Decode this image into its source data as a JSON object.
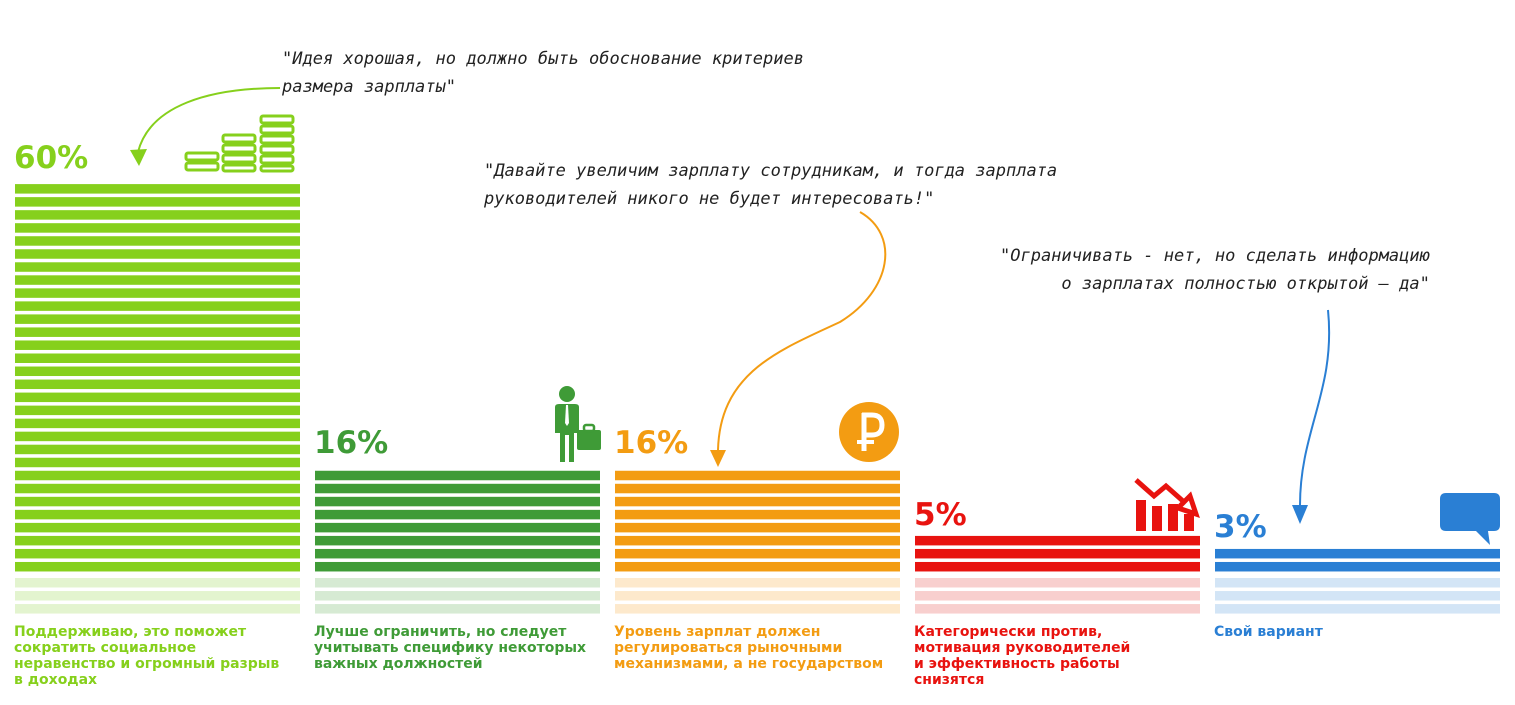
{
  "chart_data": {
    "type": "bar",
    "title": "",
    "xlabel": "",
    "ylabel": "",
    "ylim": [
      0,
      60
    ],
    "grid": false,
    "legend": "none",
    "categories": [
      "Поддерживаю, это поможет сократить социальное неравенство и огромный разрыв в доходах",
      "Лучше ограничить, но следует учитывать специфику некоторых важных должностей",
      "Уровень зарплат должен регулироваться рыночными механизмами, а не государством",
      "Категорически против, мотивация руководителей и эффективность работы снизятся",
      "Свой вариант"
    ],
    "values": [
      60,
      16,
      16,
      5,
      3
    ],
    "value_labels": [
      "60%",
      "16%",
      "16%",
      "5%",
      "3%"
    ]
  },
  "bars": [
    {
      "value_label": "60%",
      "color": "#86d01c",
      "light": "#e3f4cf",
      "icon": "coins-icon",
      "label_lines": [
        "Поддерживаю, это поможет",
        "сократить социальное",
        "неравенство и огромный разрыв",
        "в доходах"
      ]
    },
    {
      "value_label": "16%",
      "color": "#3f9b37",
      "light": "#d6ead3",
      "icon": "businessman-icon",
      "label_lines": [
        "Лучше ограничить, но следует",
        "учитывать специфику некоторых",
        "важных должностей"
      ]
    },
    {
      "value_label": "16%",
      "color": "#f39c12",
      "light": "#fde9cc",
      "icon": "ruble-icon",
      "label_lines": [
        "Уровень зарплат должен",
        "регулироваться рыночными",
        "механизмами, а не государством"
      ]
    },
    {
      "value_label": "5%",
      "color": "#e8130f",
      "light": "#f8cfce",
      "icon": "decline-chart-icon",
      "label_lines": [
        "Категорически против,",
        "мотивация руководителей",
        "и эффективность работы",
        "снизятся"
      ]
    },
    {
      "value_label": "3%",
      "color": "#2a7fd4",
      "light": "#d3e5f6",
      "icon": "speech-bubble-icon",
      "label_lines": [
        "Свой вариант"
      ]
    }
  ],
  "quotes": [
    {
      "lines": [
        "\"Идея хорошая, но должно быть обоснование критериев",
        "размера зарплаты\""
      ]
    },
    {
      "lines": [
        "\"Давайте увеличим зарплату сотрудникам, и тогда зарплата",
        "руководителей никого не будет интересовать!\""
      ]
    },
    {
      "lines": [
        "\"Ограничивать - нет, но сделать информацию",
        "о зарплатах полностью открытой – да\""
      ]
    }
  ]
}
